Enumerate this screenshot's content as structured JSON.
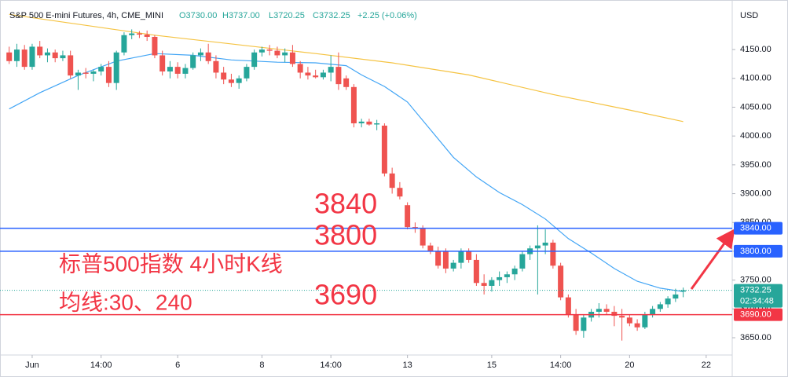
{
  "chart_data": {
    "type": "candlestick",
    "header": {
      "title": "S&P 500 E-mini Futures, 4h, CME_MINI",
      "open": "O3730.00",
      "high": "H3737.00",
      "low": "L3720.25",
      "close": "C3732.25",
      "change": "+2.25 (+0.06%)"
    },
    "currency": "USD",
    "up_color": "#26a69a",
    "down_color": "#ef5350",
    "open": [
      4145,
      4130,
      4150,
      4120,
      4155,
      4140,
      4145,
      4135,
      4140,
      4105,
      4110,
      4108,
      4112,
      4120,
      4092,
      4145,
      4175,
      4178,
      4176,
      4172,
      4140,
      4112,
      4120,
      4108,
      4118,
      4140,
      4145,
      4130,
      4110,
      4098,
      4092,
      4100,
      4120,
      4145,
      4150,
      4148,
      4140,
      4145,
      4125,
      4110,
      4105,
      4102,
      4110,
      4120,
      4100,
      4085,
      4022,
      4025,
      4020,
      4018,
      3935,
      3910,
      3880,
      3842,
      3840,
      3810,
      3800,
      3800,
      3770,
      3780,
      3800,
      3785,
      3745,
      3740,
      3750,
      3755,
      3760,
      3770,
      3795,
      3805,
      3810,
      3815,
      3775,
      3720,
      3690,
      3662,
      3685,
      3695,
      3700,
      3695,
      3688,
      3685,
      3675,
      3668,
      3690,
      3700,
      3708,
      3718,
      3730
    ],
    "high": [
      4155,
      4160,
      4158,
      4160,
      4165,
      4152,
      4150,
      4148,
      4148,
      4115,
      4118,
      4115,
      4125,
      4130,
      4148,
      4180,
      4185,
      4182,
      4183,
      4175,
      4148,
      4130,
      4128,
      4125,
      4145,
      4152,
      4160,
      4140,
      4120,
      4108,
      4105,
      4125,
      4150,
      4155,
      4158,
      4155,
      4152,
      4158,
      4130,
      4120,
      4115,
      4115,
      4140,
      4145,
      4105,
      4090,
      4030,
      4030,
      4028,
      4022,
      3945,
      3920,
      3885,
      3850,
      3845,
      3815,
      3808,
      3805,
      3785,
      3805,
      3805,
      3795,
      3760,
      3755,
      3765,
      3765,
      3775,
      3800,
      3810,
      3845,
      3838,
      3820,
      3780,
      3725,
      3700,
      3690,
      3700,
      3710,
      3708,
      3705,
      3700,
      3690,
      3682,
      3695,
      3705,
      3712,
      3722,
      3735,
      3737
    ],
    "low": [
      4125,
      4120,
      4115,
      4115,
      4135,
      4128,
      4128,
      4130,
      4100,
      4080,
      4100,
      4095,
      4105,
      4085,
      4080,
      4140,
      4168,
      4170,
      4165,
      4135,
      4105,
      4100,
      4100,
      4100,
      4115,
      4130,
      4125,
      4100,
      4090,
      4085,
      4082,
      4095,
      4115,
      4138,
      4140,
      4135,
      4128,
      4120,
      4100,
      4098,
      4100,
      4098,
      4095,
      4080,
      4080,
      4015,
      4015,
      4018,
      4010,
      3930,
      3900,
      3890,
      3838,
      3832,
      3805,
      3795,
      3770,
      3762,
      3765,
      3770,
      3780,
      3740,
      3725,
      3730,
      3740,
      3745,
      3750,
      3765,
      3785,
      3725,
      3795,
      3770,
      3715,
      3685,
      3655,
      3650,
      3678,
      3685,
      3690,
      3670,
      3645,
      3670,
      3662,
      3665,
      3685,
      3695,
      3702,
      3712,
      3720.25
    ],
    "close": [
      4130,
      4150,
      4120,
      4155,
      4140,
      4145,
      4135,
      4140,
      4105,
      4110,
      4108,
      4112,
      4120,
      4092,
      4145,
      4175,
      4178,
      4176,
      4172,
      4140,
      4112,
      4120,
      4108,
      4118,
      4140,
      4145,
      4130,
      4110,
      4098,
      4092,
      4100,
      4120,
      4145,
      4150,
      4148,
      4140,
      4145,
      4125,
      4110,
      4105,
      4102,
      4110,
      4120,
      4090,
      4085,
      4022,
      4025,
      4020,
      4022,
      3935,
      3910,
      3895,
      3842,
      3840,
      3810,
      3800,
      3775,
      3770,
      3780,
      3800,
      3785,
      3745,
      3740,
      3750,
      3755,
      3760,
      3770,
      3795,
      3805,
      3810,
      3815,
      3775,
      3720,
      3690,
      3662,
      3685,
      3695,
      3700,
      3695,
      3688,
      3685,
      3675,
      3668,
      3690,
      3700,
      3708,
      3718,
      3725,
      3732.25
    ],
    "lines": [
      {
        "color": "#42a5f5",
        "x": [
          0,
          4,
          9,
          14,
          19,
          24,
          29,
          35,
          40,
          44,
          46,
          49,
          52,
          55,
          58,
          61,
          64,
          67,
          70,
          73,
          76,
          79,
          82,
          85,
          88
        ],
        "values": [
          4047,
          4075,
          4105,
          4130,
          4143,
          4140,
          4132,
          4128,
          4127,
          4122,
          4106,
          4086,
          4059,
          4011,
          3963,
          3929,
          3902,
          3881,
          3856,
          3822,
          3797,
          3770,
          3748,
          3736,
          3730
        ]
      },
      {
        "color": "#f5c342",
        "x": [
          0,
          19,
          40,
          50,
          60,
          71,
          81,
          88
        ],
        "values": [
          4211,
          4175,
          4143,
          4127,
          4106,
          4072,
          4045,
          4025
        ]
      }
    ],
    "levels": [
      {
        "value": 3840,
        "label": "3840.00",
        "color": "#2962ff"
      },
      {
        "value": 3800,
        "label": "3800.00",
        "color": "#2962ff"
      },
      {
        "value": 3690,
        "label": "3690.00",
        "color": "#f23645"
      }
    ],
    "last_price": {
      "value": 3732.25,
      "label": "3732.25",
      "countdown": "02:34:48"
    },
    "annotations": {
      "level_texts": [
        "3840",
        "3800",
        "3690"
      ],
      "title": "标普500指数 4小时K线",
      "subtitle": "均线:30、240"
    },
    "xlim": [
      -1.2,
      94.4
    ],
    "xticks": [
      {
        "value": 3,
        "label": "Jun"
      },
      {
        "value": 12,
        "label": "14:00"
      },
      {
        "value": 22,
        "label": "6"
      },
      {
        "value": 33,
        "label": "8"
      },
      {
        "value": 42,
        "label": "14:00"
      },
      {
        "value": 52,
        "label": "13"
      },
      {
        "value": 63,
        "label": "15"
      },
      {
        "value": 72,
        "label": "14:00"
      },
      {
        "value": 81,
        "label": "20"
      },
      {
        "value": 91,
        "label": "22"
      }
    ],
    "ylim": [
      3620,
      4236
    ],
    "yticks": [
      {
        "value": 4150,
        "label": "4150.00"
      },
      {
        "value": 4100,
        "label": "4100.00"
      },
      {
        "value": 4050,
        "label": "4050.00"
      },
      {
        "value": 4000,
        "label": "4000.00"
      },
      {
        "value": 3950,
        "label": "3950.00"
      },
      {
        "value": 3900,
        "label": "3900.00"
      },
      {
        "value": 3850,
        "label": "3850.00"
      },
      {
        "value": 3800,
        "label": "3800.00"
      },
      {
        "value": 3750,
        "label": "3750.00"
      },
      {
        "value": 3700,
        "label": "3700.00"
      },
      {
        "value": 3650,
        "label": "3650.00"
      }
    ],
    "grid": false
  }
}
